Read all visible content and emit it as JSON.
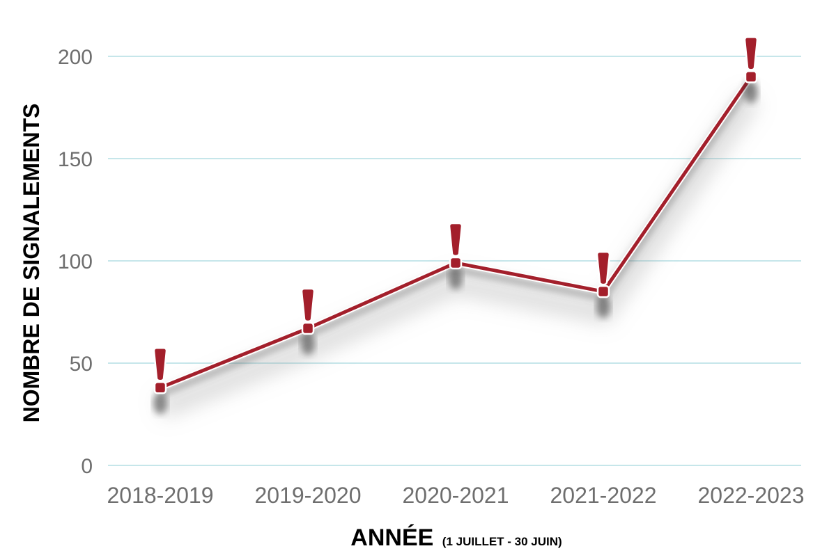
{
  "chart_data": {
    "type": "line",
    "categories": [
      "2018-2019",
      "2019-2020",
      "2020-2021",
      "2021-2022",
      "2022-2023"
    ],
    "series": [
      {
        "values": [
          38,
          67,
          99,
          85,
          190
        ]
      }
    ],
    "ylabel": "NOMBRE DE SIGNALEMENTS",
    "xlabel": "ANNÉE",
    "xlabel_note": "(1 JUILLET - 30 JUIN)",
    "yticks": [
      0,
      50,
      100,
      150,
      200
    ],
    "ylim": [
      0,
      200
    ],
    "grid": true,
    "marker": "exclamation-icon",
    "colors": {
      "line": "#a31f2b",
      "grid": "#c6e6ea",
      "tick_text": "#6e6e6e",
      "title_text": "#000000"
    }
  }
}
